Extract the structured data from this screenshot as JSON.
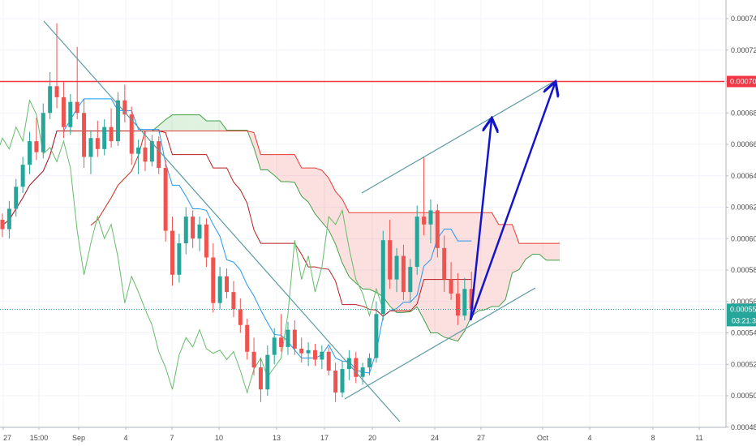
{
  "chart_data": {
    "type": "candlestick",
    "title": "",
    "x_tick_labels": [
      "27",
      "15:00",
      "Sep",
      "4",
      "7",
      "10",
      "13",
      "17",
      "20",
      "24",
      "27",
      "Oct",
      "4",
      "8",
      "11"
    ],
    "y_tick_labels": [
      "0.000480",
      "0.000500",
      "0.000520",
      "0.000540",
      "0.000560",
      "0.000580",
      "0.000600",
      "0.000620",
      "0.000640",
      "0.000660",
      "0.000680",
      "0.000700",
      "0.000720",
      "0.000740"
    ],
    "ylim": [
      0.000478,
      0.00075
    ],
    "grid": true,
    "horizontal_level": {
      "value": 0.0007,
      "label": "0.000700",
      "color": "#f23645"
    },
    "last_price": {
      "value": 0.000555,
      "label": "0.000555",
      "countdown": "03:21:34",
      "color": "#26a69a"
    },
    "candles": [
      [
        0.000612,
        0.000616,
        0.000601,
        0.000606
      ],
      [
        0.000606,
        0.000624,
        0.0006,
        0.000619
      ],
      [
        0.000619,
        0.000638,
        0.000614,
        0.000633
      ],
      [
        0.000633,
        0.000652,
        0.000629,
        0.000647
      ],
      [
        0.000647,
        0.000668,
        0.000641,
        0.000662
      ],
      [
        0.000662,
        0.000677,
        0.00065,
        0.000655
      ],
      [
        0.000655,
        0.000686,
        0.000651,
        0.00068
      ],
      [
        0.00068,
        0.000706,
        0.000676,
        0.000697
      ],
      [
        0.000697,
        0.000737,
        0.000683,
        0.00069
      ],
      [
        0.00069,
        0.0007,
        0.000664,
        0.000671
      ],
      [
        0.000671,
        0.000692,
        0.000666,
        0.000687
      ],
      [
        0.000687,
        0.000722,
        0.000676,
        0.00068
      ],
      [
        0.00068,
        0.000689,
        0.000645,
        0.000652
      ],
      [
        0.000652,
        0.000669,
        0.000641,
        0.000664
      ],
      [
        0.000664,
        0.000675,
        0.000652,
        0.000657
      ],
      [
        0.000657,
        0.000676,
        0.000653,
        0.000671
      ],
      [
        0.000671,
        0.000683,
        0.000658,
        0.000662
      ],
      [
        0.000662,
        0.000693,
        0.000659,
        0.000688
      ],
      [
        0.000688,
        0.000698,
        0.000674,
        0.000679
      ],
      [
        0.000679,
        0.000684,
        0.000647,
        0.000654
      ],
      [
        0.000654,
        0.000663,
        0.000641,
        0.000658
      ],
      [
        0.000658,
        0.000668,
        0.000643,
        0.000649
      ],
      [
        0.000649,
        0.000666,
        0.000646,
        0.000662
      ],
      [
        0.000662,
        0.000665,
        0.000641,
        0.000645
      ],
      [
        0.000645,
        0.00065,
        0.000598,
        0.000605
      ],
      [
        0.000605,
        0.000614,
        0.00057,
        0.000577
      ],
      [
        0.000577,
        0.000603,
        0.000572,
        0.000597
      ],
      [
        0.000597,
        0.00062,
        0.00059,
        0.000614
      ],
      [
        0.000614,
        0.000618,
        0.000594,
        0.0006
      ],
      [
        0.0006,
        0.000614,
        0.000592,
        0.000609
      ],
      [
        0.000609,
        0.000613,
        0.000582,
        0.000588
      ],
      [
        0.000588,
        0.000597,
        0.000553,
        0.000559
      ],
      [
        0.000559,
        0.000582,
        0.000555,
        0.000576
      ],
      [
        0.000576,
        0.000581,
        0.000562,
        0.000566
      ],
      [
        0.000566,
        0.000573,
        0.00055,
        0.000555
      ],
      [
        0.000555,
        0.000562,
        0.00054,
        0.000545
      ],
      [
        0.000545,
        0.000549,
        0.000523,
        0.000528
      ],
      [
        0.000528,
        0.000537,
        0.000513,
        0.000518
      ],
      [
        0.000518,
        0.000524,
        0.000496,
        0.000504
      ],
      [
        0.000504,
        0.000532,
        0.0005,
        0.000526
      ],
      [
        0.000526,
        0.000543,
        0.00052,
        0.000537
      ],
      [
        0.000537,
        0.000552,
        0.000528,
        0.000531
      ],
      [
        0.000531,
        0.000547,
        0.000526,
        0.000542
      ],
      [
        0.000542,
        0.000548,
        0.000526,
        0.00053
      ],
      [
        0.00053,
        0.000537,
        0.000521,
        0.000527
      ],
      [
        0.000527,
        0.000534,
        0.000519,
        0.000529
      ],
      [
        0.000529,
        0.000533,
        0.000519,
        0.000523
      ],
      [
        0.000523,
        0.000532,
        0.000517,
        0.000528
      ],
      [
        0.000528,
        0.000531,
        0.000513,
        0.000516
      ],
      [
        0.000516,
        0.000521,
        0.000496,
        0.000502
      ],
      [
        0.000502,
        0.000522,
        0.000499,
        0.000517
      ],
      [
        0.000517,
        0.000529,
        0.00051,
        0.000524
      ],
      [
        0.000524,
        0.000528,
        0.000508,
        0.000512
      ],
      [
        0.000512,
        0.000521,
        0.000507,
        0.000518
      ],
      [
        0.000518,
        0.000527,
        0.000513,
        0.000524
      ],
      [
        0.000524,
        0.00056,
        0.000521,
        0.000552
      ],
      [
        0.000552,
        0.000605,
        0.000548,
        0.000599
      ],
      [
        0.000599,
        0.000612,
        0.000568,
        0.000574
      ],
      [
        0.000574,
        0.000594,
        0.000566,
        0.000589
      ],
      [
        0.000589,
        0.000596,
        0.000561,
        0.000566
      ],
      [
        0.000566,
        0.000587,
        0.00056,
        0.000582
      ],
      [
        0.000582,
        0.000621,
        0.000577,
        0.000614
      ],
      [
        0.000614,
        0.000652,
        0.000602,
        0.000609
      ],
      [
        0.000609,
        0.000625,
        0.000597,
        0.000618
      ],
      [
        0.000618,
        0.000622,
        0.000588,
        0.000594
      ],
      [
        0.000594,
        0.000602,
        0.000566,
        0.000574
      ],
      [
        0.000574,
        0.000585,
        0.000561,
        0.000565
      ],
      [
        0.000565,
        0.000578,
        0.000545,
        0.000551
      ],
      [
        0.000551,
        0.000575,
        0.000548,
        0.000568
      ],
      [
        0.000568,
        0.000579,
        0.00055,
        0.000555
      ]
    ]
  }
}
